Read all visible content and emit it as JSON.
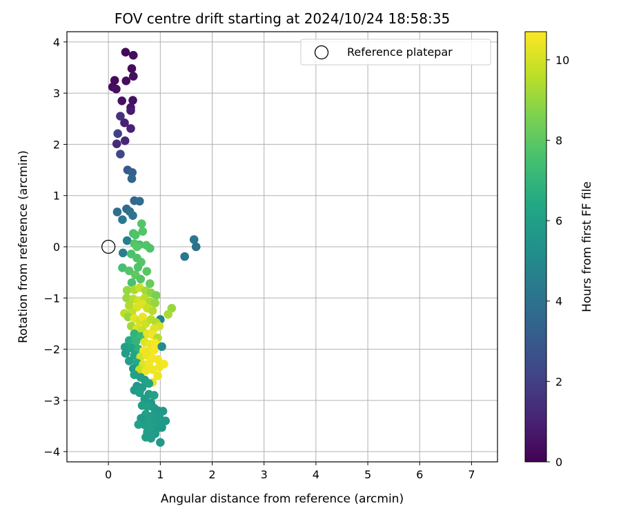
{
  "chart_data": {
    "type": "scatter",
    "title": "FOV centre drift starting at 2024/10/24 18:58:35",
    "xlabel": "Angular distance from reference (arcmin)",
    "ylabel": "Rotation from reference (arcmin)",
    "xlim": [
      -0.8,
      7.5
    ],
    "ylim": [
      -4.2,
      4.2
    ],
    "xticks": [
      0,
      1,
      2,
      3,
      4,
      5,
      6,
      7
    ],
    "yticks": [
      -4,
      -3,
      -2,
      -1,
      0,
      1,
      2,
      3,
      4
    ],
    "tick_labels": {
      "x": [
        "0",
        "1",
        "2",
        "3",
        "4",
        "5",
        "6",
        "7"
      ],
      "y": [
        "−4",
        "−3",
        "−2",
        "−1",
        "0",
        "1",
        "2",
        "3",
        "4"
      ]
    },
    "grid": true,
    "legend": {
      "position": "top-right",
      "entries": [
        "Reference platepar"
      ]
    },
    "reference_point": {
      "x": 0,
      "y": 0,
      "label": "Reference platepar"
    },
    "colorbar": {
      "label": "Hours from first FF file",
      "range": [
        0,
        10.7
      ],
      "ticks": [
        0,
        2,
        4,
        6,
        8,
        10
      ],
      "tick_labels": [
        "0",
        "2",
        "4",
        "6",
        "8",
        "10"
      ],
      "colormap": "viridis"
    },
    "points": [
      {
        "x": 0.33,
        "y": 3.8,
        "c": 0.2
      },
      {
        "x": 0.48,
        "y": 3.74,
        "c": 0.3
      },
      {
        "x": 0.45,
        "y": 3.48,
        "c": 0.3
      },
      {
        "x": 0.48,
        "y": 3.33,
        "c": 0.4
      },
      {
        "x": 0.34,
        "y": 3.24,
        "c": 0.4
      },
      {
        "x": 0.12,
        "y": 3.25,
        "c": 0.2
      },
      {
        "x": 0.08,
        "y": 3.12,
        "c": 0.3
      },
      {
        "x": 0.15,
        "y": 3.08,
        "c": 0.4
      },
      {
        "x": 0.47,
        "y": 2.86,
        "c": 0.5
      },
      {
        "x": 0.26,
        "y": 2.85,
        "c": 0.5
      },
      {
        "x": 0.43,
        "y": 2.72,
        "c": 0.6
      },
      {
        "x": 0.43,
        "y": 2.66,
        "c": 0.8
      },
      {
        "x": 0.23,
        "y": 2.55,
        "c": 1.5
      },
      {
        "x": 0.31,
        "y": 2.42,
        "c": 1.0
      },
      {
        "x": 0.43,
        "y": 2.31,
        "c": 1.0
      },
      {
        "x": 0.18,
        "y": 2.21,
        "c": 2.0
      },
      {
        "x": 0.32,
        "y": 2.07,
        "c": 1.2
      },
      {
        "x": 0.16,
        "y": 2.01,
        "c": 1.3
      },
      {
        "x": 0.23,
        "y": 1.81,
        "c": 2.2
      },
      {
        "x": 0.37,
        "y": 1.5,
        "c": 3.0
      },
      {
        "x": 0.46,
        "y": 1.45,
        "c": 3.2
      },
      {
        "x": 0.45,
        "y": 1.33,
        "c": 3.5
      },
      {
        "x": 0.5,
        "y": 0.9,
        "c": 3.5
      },
      {
        "x": 0.6,
        "y": 0.89,
        "c": 3.8
      },
      {
        "x": 0.35,
        "y": 0.74,
        "c": 3.6
      },
      {
        "x": 0.41,
        "y": 0.69,
        "c": 4.0
      },
      {
        "x": 0.17,
        "y": 0.68,
        "c": 3.8
      },
      {
        "x": 0.47,
        "y": 0.61,
        "c": 4.2
      },
      {
        "x": 0.27,
        "y": 0.53,
        "c": 4.3
      },
      {
        "x": 0.64,
        "y": 0.45,
        "c": 7.8
      },
      {
        "x": 0.66,
        "y": 0.3,
        "c": 7.8
      },
      {
        "x": 0.48,
        "y": 0.26,
        "c": 7.6
      },
      {
        "x": 0.52,
        "y": 0.23,
        "c": 7.7
      },
      {
        "x": 0.36,
        "y": 0.12,
        "c": 4.5
      },
      {
        "x": 0.5,
        "y": 0.06,
        "c": 7.8
      },
      {
        "x": 0.6,
        "y": 0.04,
        "c": 7.5
      },
      {
        "x": 0.73,
        "y": 0.03,
        "c": 7.8
      },
      {
        "x": 0.8,
        "y": -0.03,
        "c": 7.7
      },
      {
        "x": 0.55,
        "y": 0.0,
        "c": 7.9
      },
      {
        "x": 0.28,
        "y": -0.12,
        "c": 4.6
      },
      {
        "x": 0.44,
        "y": -0.14,
        "c": 7.6
      },
      {
        "x": 0.55,
        "y": -0.22,
        "c": 7.7
      },
      {
        "x": 0.63,
        "y": -0.3,
        "c": 7.8
      },
      {
        "x": 0.27,
        "y": -0.41,
        "c": 7.5
      },
      {
        "x": 0.4,
        "y": -0.47,
        "c": 7.8
      },
      {
        "x": 0.57,
        "y": -0.4,
        "c": 7.7
      },
      {
        "x": 0.74,
        "y": -0.48,
        "c": 7.9
      },
      {
        "x": 0.52,
        "y": -0.55,
        "c": 8.0
      },
      {
        "x": 0.62,
        "y": -0.63,
        "c": 7.8
      },
      {
        "x": 0.45,
        "y": -0.7,
        "c": 7.6
      },
      {
        "x": 0.8,
        "y": -0.72,
        "c": 8.2
      },
      {
        "x": 1.65,
        "y": 0.14,
        "c": 4.2
      },
      {
        "x": 1.69,
        "y": 0.0,
        "c": 4.0
      },
      {
        "x": 1.47,
        "y": -0.19,
        "c": 4.3
      },
      {
        "x": 0.36,
        "y": -0.85,
        "c": 9.0
      },
      {
        "x": 0.5,
        "y": -0.84,
        "c": 9.3
      },
      {
        "x": 0.6,
        "y": -0.8,
        "c": 9.8
      },
      {
        "x": 0.72,
        "y": -0.86,
        "c": 9.2
      },
      {
        "x": 0.82,
        "y": -0.9,
        "c": 8.8
      },
      {
        "x": 0.92,
        "y": -0.95,
        "c": 8.5
      },
      {
        "x": 0.35,
        "y": -1.0,
        "c": 9.1
      },
      {
        "x": 0.48,
        "y": -1.02,
        "c": 9.5
      },
      {
        "x": 0.58,
        "y": -1.05,
        "c": 10.0
      },
      {
        "x": 0.7,
        "y": -1.0,
        "c": 9.6
      },
      {
        "x": 0.8,
        "y": -1.08,
        "c": 9.3
      },
      {
        "x": 0.9,
        "y": -1.1,
        "c": 9.0
      },
      {
        "x": 0.4,
        "y": -1.15,
        "c": 9.4
      },
      {
        "x": 0.55,
        "y": -1.18,
        "c": 10.1
      },
      {
        "x": 0.65,
        "y": -1.12,
        "c": 10.2
      },
      {
        "x": 0.75,
        "y": -1.2,
        "c": 9.8
      },
      {
        "x": 0.85,
        "y": -1.25,
        "c": 9.5
      },
      {
        "x": 0.45,
        "y": -1.28,
        "c": 9.7
      },
      {
        "x": 1.22,
        "y": -1.2,
        "c": 9.0
      },
      {
        "x": 1.15,
        "y": -1.32,
        "c": 9.3
      },
      {
        "x": 1.0,
        "y": -1.42,
        "c": 4.8
      },
      {
        "x": 0.31,
        "y": -1.3,
        "c": 9.6
      },
      {
        "x": 0.38,
        "y": -1.37,
        "c": 9.0
      },
      {
        "x": 0.5,
        "y": -1.4,
        "c": 10.3
      },
      {
        "x": 0.6,
        "y": -1.45,
        "c": 10.0
      },
      {
        "x": 0.66,
        "y": -1.37,
        "c": 10.4
      },
      {
        "x": 0.72,
        "y": -1.5,
        "c": 9.9
      },
      {
        "x": 0.82,
        "y": -1.42,
        "c": 9.6
      },
      {
        "x": 0.92,
        "y": -1.48,
        "c": 9.4
      },
      {
        "x": 0.98,
        "y": -1.55,
        "c": 10.0
      },
      {
        "x": 0.44,
        "y": -1.55,
        "c": 9.2
      },
      {
        "x": 0.55,
        "y": -1.6,
        "c": 10.1
      },
      {
        "x": 0.65,
        "y": -1.62,
        "c": 9.8
      },
      {
        "x": 0.88,
        "y": -1.6,
        "c": 10.2
      },
      {
        "x": 0.5,
        "y": -1.7,
        "c": 6.9
      },
      {
        "x": 0.62,
        "y": -1.75,
        "c": 7.2
      },
      {
        "x": 0.75,
        "y": -1.7,
        "c": 10.3
      },
      {
        "x": 0.85,
        "y": -1.72,
        "c": 10.5
      },
      {
        "x": 0.95,
        "y": -1.78,
        "c": 9.5
      },
      {
        "x": 0.4,
        "y": -1.83,
        "c": 6.5
      },
      {
        "x": 0.53,
        "y": -1.85,
        "c": 7.0
      },
      {
        "x": 0.7,
        "y": -1.86,
        "c": 10.2
      },
      {
        "x": 0.8,
        "y": -1.9,
        "c": 10.4
      },
      {
        "x": 0.9,
        "y": -1.88,
        "c": 10.6
      },
      {
        "x": 1.03,
        "y": -1.95,
        "c": 5.2
      },
      {
        "x": 0.32,
        "y": -1.96,
        "c": 6.0
      },
      {
        "x": 0.45,
        "y": -1.98,
        "c": 6.2
      },
      {
        "x": 0.58,
        "y": -2.0,
        "c": 6.8
      },
      {
        "x": 0.68,
        "y": -2.03,
        "c": 10.5
      },
      {
        "x": 0.78,
        "y": -2.05,
        "c": 10.3
      },
      {
        "x": 0.88,
        "y": -2.02,
        "c": 10.6
      },
      {
        "x": 0.33,
        "y": -2.08,
        "c": 5.9
      },
      {
        "x": 0.5,
        "y": -2.12,
        "c": 6.3
      },
      {
        "x": 0.62,
        "y": -2.15,
        "c": 10.0
      },
      {
        "x": 0.74,
        "y": -2.12,
        "c": 10.4
      },
      {
        "x": 0.84,
        "y": -2.18,
        "c": 10.6
      },
      {
        "x": 0.95,
        "y": -2.2,
        "c": 10.5
      },
      {
        "x": 0.4,
        "y": -2.23,
        "c": 6.0
      },
      {
        "x": 0.55,
        "y": -2.27,
        "c": 6.4
      },
      {
        "x": 0.67,
        "y": -2.3,
        "c": 10.2
      },
      {
        "x": 0.78,
        "y": -2.28,
        "c": 10.5
      },
      {
        "x": 1.07,
        "y": -2.29,
        "c": 10.6
      },
      {
        "x": 0.98,
        "y": -2.35,
        "c": 10.5
      },
      {
        "x": 0.48,
        "y": -2.38,
        "c": 5.8
      },
      {
        "x": 0.6,
        "y": -2.4,
        "c": 9.8
      },
      {
        "x": 0.72,
        "y": -2.42,
        "c": 10.4
      },
      {
        "x": 0.85,
        "y": -2.4,
        "c": 10.5
      },
      {
        "x": 0.5,
        "y": -2.5,
        "c": 6.1
      },
      {
        "x": 0.62,
        "y": -2.55,
        "c": 5.9
      },
      {
        "x": 0.95,
        "y": -2.52,
        "c": 10.4
      },
      {
        "x": 0.7,
        "y": -2.6,
        "c": 6.0
      },
      {
        "x": 0.85,
        "y": -2.65,
        "c": 10.3
      },
      {
        "x": 0.78,
        "y": -2.67,
        "c": 6.2
      },
      {
        "x": 0.55,
        "y": -2.72,
        "c": 5.7
      },
      {
        "x": 0.65,
        "y": -2.75,
        "c": 5.9
      },
      {
        "x": 0.5,
        "y": -2.8,
        "c": 5.8
      },
      {
        "x": 0.6,
        "y": -2.85,
        "c": 6.0
      },
      {
        "x": 0.78,
        "y": -2.88,
        "c": 5.9
      },
      {
        "x": 0.88,
        "y": -2.9,
        "c": 6.1
      },
      {
        "x": 0.7,
        "y": -2.97,
        "c": 5.8
      },
      {
        "x": 0.82,
        "y": -3.05,
        "c": 5.7
      },
      {
        "x": 0.65,
        "y": -3.1,
        "c": 5.9
      },
      {
        "x": 0.75,
        "y": -3.12,
        "c": 6.0
      },
      {
        "x": 0.88,
        "y": -3.15,
        "c": 5.8
      },
      {
        "x": 0.95,
        "y": -3.2,
        "c": 5.7
      },
      {
        "x": 1.05,
        "y": -3.21,
        "c": 5.6
      },
      {
        "x": 0.72,
        "y": -3.27,
        "c": 6.1
      },
      {
        "x": 0.85,
        "y": -3.3,
        "c": 5.9
      },
      {
        "x": 0.98,
        "y": -3.33,
        "c": 5.8
      },
      {
        "x": 0.63,
        "y": -3.35,
        "c": 5.7
      },
      {
        "x": 0.78,
        "y": -3.4,
        "c": 6.0
      },
      {
        "x": 0.9,
        "y": -3.42,
        "c": 5.9
      },
      {
        "x": 1.0,
        "y": -3.4,
        "c": 5.8
      },
      {
        "x": 1.1,
        "y": -3.4,
        "c": 5.7
      },
      {
        "x": 0.58,
        "y": -3.47,
        "c": 6.2
      },
      {
        "x": 0.7,
        "y": -3.48,
        "c": 5.9
      },
      {
        "x": 0.83,
        "y": -3.52,
        "c": 6.0
      },
      {
        "x": 0.95,
        "y": -3.54,
        "c": 5.8
      },
      {
        "x": 1.03,
        "y": -3.53,
        "c": 5.7
      },
      {
        "x": 0.75,
        "y": -3.62,
        "c": 5.9
      },
      {
        "x": 0.9,
        "y": -3.65,
        "c": 5.8
      },
      {
        "x": 0.72,
        "y": -3.72,
        "c": 6.0
      },
      {
        "x": 0.82,
        "y": -3.74,
        "c": 5.9
      },
      {
        "x": 1.0,
        "y": -3.82,
        "c": 5.7
      }
    ]
  }
}
